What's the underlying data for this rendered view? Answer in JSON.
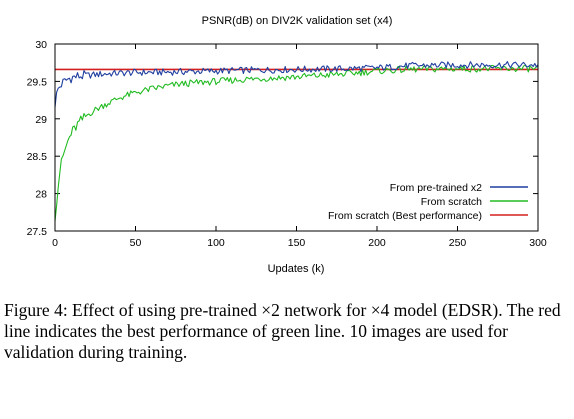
{
  "chart_data": {
    "type": "line",
    "title": "PSNR(dB) on DIV2K validation set (x4)",
    "xlabel": "Updates (k)",
    "ylabel": "",
    "xlim": [
      0,
      300
    ],
    "ylim": [
      27.5,
      30
    ],
    "xticks": [
      0,
      50,
      100,
      150,
      200,
      250,
      300
    ],
    "yticks": [
      27.5,
      28,
      28.5,
      29,
      29.5,
      30
    ],
    "ytick_labels": [
      "27.5",
      "28",
      "28.5",
      "29",
      "29.5",
      "30"
    ],
    "grid": false,
    "legend_position": "bottom-right",
    "series": [
      {
        "name": "From pre-trained x2",
        "color": "#1f3f9f",
        "x": [
          0,
          1,
          2,
          4,
          6,
          8,
          10,
          15,
          20,
          30,
          40,
          50,
          60,
          80,
          100,
          120,
          150,
          180,
          200,
          220,
          250,
          280,
          300
        ],
        "values": [
          29.2,
          29.32,
          29.4,
          29.46,
          29.5,
          29.53,
          29.55,
          29.57,
          29.58,
          29.6,
          29.61,
          29.62,
          29.62,
          29.63,
          29.64,
          29.65,
          29.66,
          29.67,
          29.68,
          29.71,
          29.72,
          29.72,
          29.72
        ]
      },
      {
        "name": "From scratch",
        "color": "#22bb22",
        "x": [
          0,
          1,
          2,
          3,
          5,
          8,
          10,
          15,
          20,
          25,
          30,
          40,
          50,
          60,
          70,
          80,
          100,
          120,
          150,
          180,
          200,
          220,
          250,
          280,
          300
        ],
        "values": [
          27.7,
          27.9,
          28.1,
          28.3,
          28.5,
          28.7,
          28.8,
          28.95,
          29.05,
          29.12,
          29.18,
          29.28,
          29.35,
          29.4,
          29.44,
          29.47,
          29.5,
          29.53,
          29.56,
          29.6,
          29.64,
          29.66,
          29.67,
          29.67,
          29.67
        ]
      },
      {
        "name": "From scratch (Best performance)",
        "color": "#d42020",
        "x": [
          0,
          300
        ],
        "values": [
          29.66,
          29.66
        ]
      }
    ]
  },
  "caption": "Figure 4: Effect of using pre-trained ×2 network for ×4 model (EDSR). The red line indicates the best performance of green line. 10 images are used for validation during training."
}
